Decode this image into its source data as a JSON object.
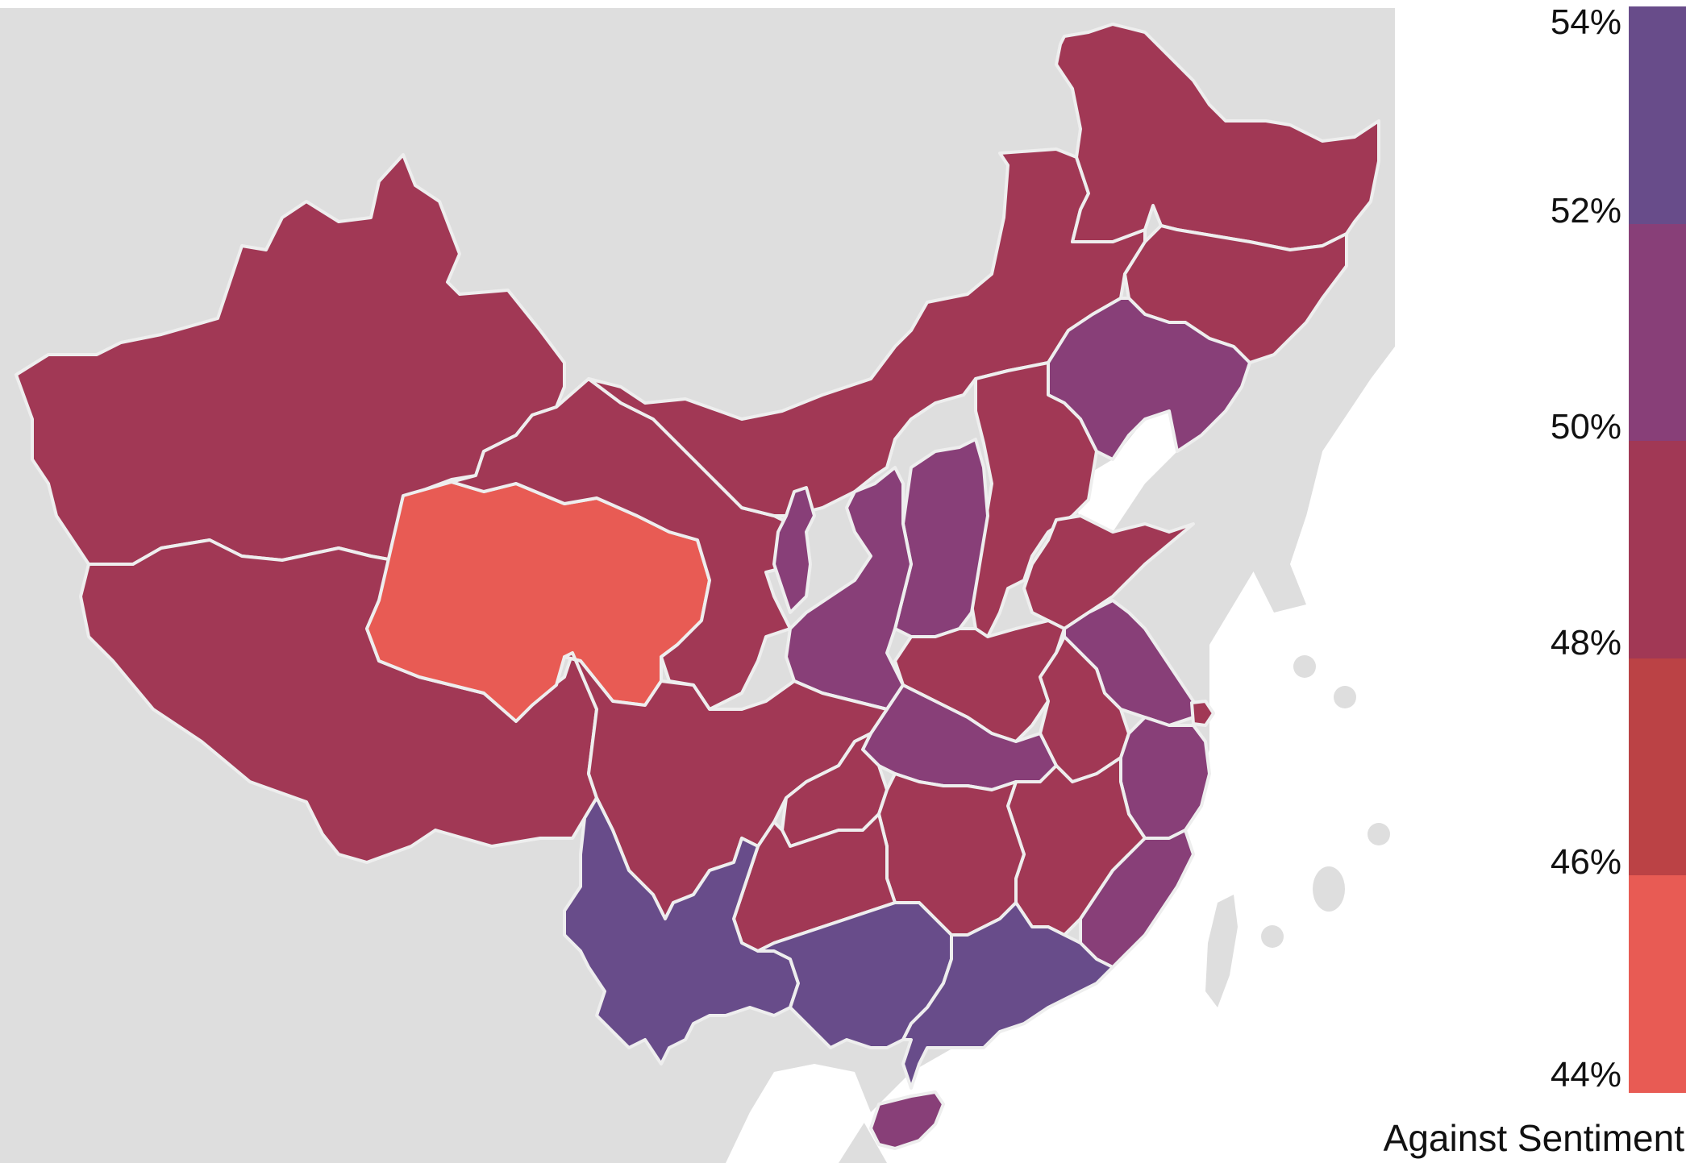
{
  "legend": {
    "title": "Against Sentiment",
    "ticks": [
      "54%",
      "52%",
      "50%",
      "48%",
      "46%",
      "44%"
    ],
    "bins": [
      {
        "from": 52,
        "to": 54,
        "color": "#684c8a"
      },
      {
        "from": 50,
        "to": 52,
        "color": "#883f78"
      },
      {
        "from": 48,
        "to": 50,
        "color": "#a13855"
      },
      {
        "from": 46,
        "to": 48,
        "color": "#bb4245"
      },
      {
        "from": 44,
        "to": 46,
        "color": "#e85b54"
      }
    ]
  },
  "colors": {
    "background_land": "#dedede",
    "sea": "#ffffff",
    "border": "#eeeeee"
  },
  "regions": [
    {
      "id": "xinjiang",
      "bin": "48-50"
    },
    {
      "id": "tibet",
      "bin": "48-50"
    },
    {
      "id": "qinghai",
      "bin": "44-46"
    },
    {
      "id": "gansu",
      "bin": "48-50"
    },
    {
      "id": "inner-mongolia",
      "bin": "48-50"
    },
    {
      "id": "heilongjiang",
      "bin": "48-50"
    },
    {
      "id": "jilin",
      "bin": "48-50"
    },
    {
      "id": "liaoning",
      "bin": "50-52"
    },
    {
      "id": "beijing",
      "bin": "50-52"
    },
    {
      "id": "tianjin",
      "bin": "46-48"
    },
    {
      "id": "hebei",
      "bin": "48-50"
    },
    {
      "id": "shanxi",
      "bin": "50-52"
    },
    {
      "id": "ningxia",
      "bin": "50-52"
    },
    {
      "id": "shaanxi",
      "bin": "50-52"
    },
    {
      "id": "shandong",
      "bin": "48-50"
    },
    {
      "id": "henan",
      "bin": "48-50"
    },
    {
      "id": "jiangsu",
      "bin": "50-52"
    },
    {
      "id": "shanghai",
      "bin": "48-50"
    },
    {
      "id": "anhui",
      "bin": "48-50"
    },
    {
      "id": "hubei",
      "bin": "50-52"
    },
    {
      "id": "sichuan",
      "bin": "48-50"
    },
    {
      "id": "chongqing",
      "bin": "48-50"
    },
    {
      "id": "zhejiang",
      "bin": "50-52"
    },
    {
      "id": "jiangxi",
      "bin": "48-50"
    },
    {
      "id": "hunan",
      "bin": "48-50"
    },
    {
      "id": "guizhou",
      "bin": "48-50"
    },
    {
      "id": "fujian",
      "bin": "50-52"
    },
    {
      "id": "yunnan",
      "bin": "52-54"
    },
    {
      "id": "guangxi",
      "bin": "52-54"
    },
    {
      "id": "guangdong",
      "bin": "52-54"
    },
    {
      "id": "hainan",
      "bin": "50-52"
    }
  ]
}
